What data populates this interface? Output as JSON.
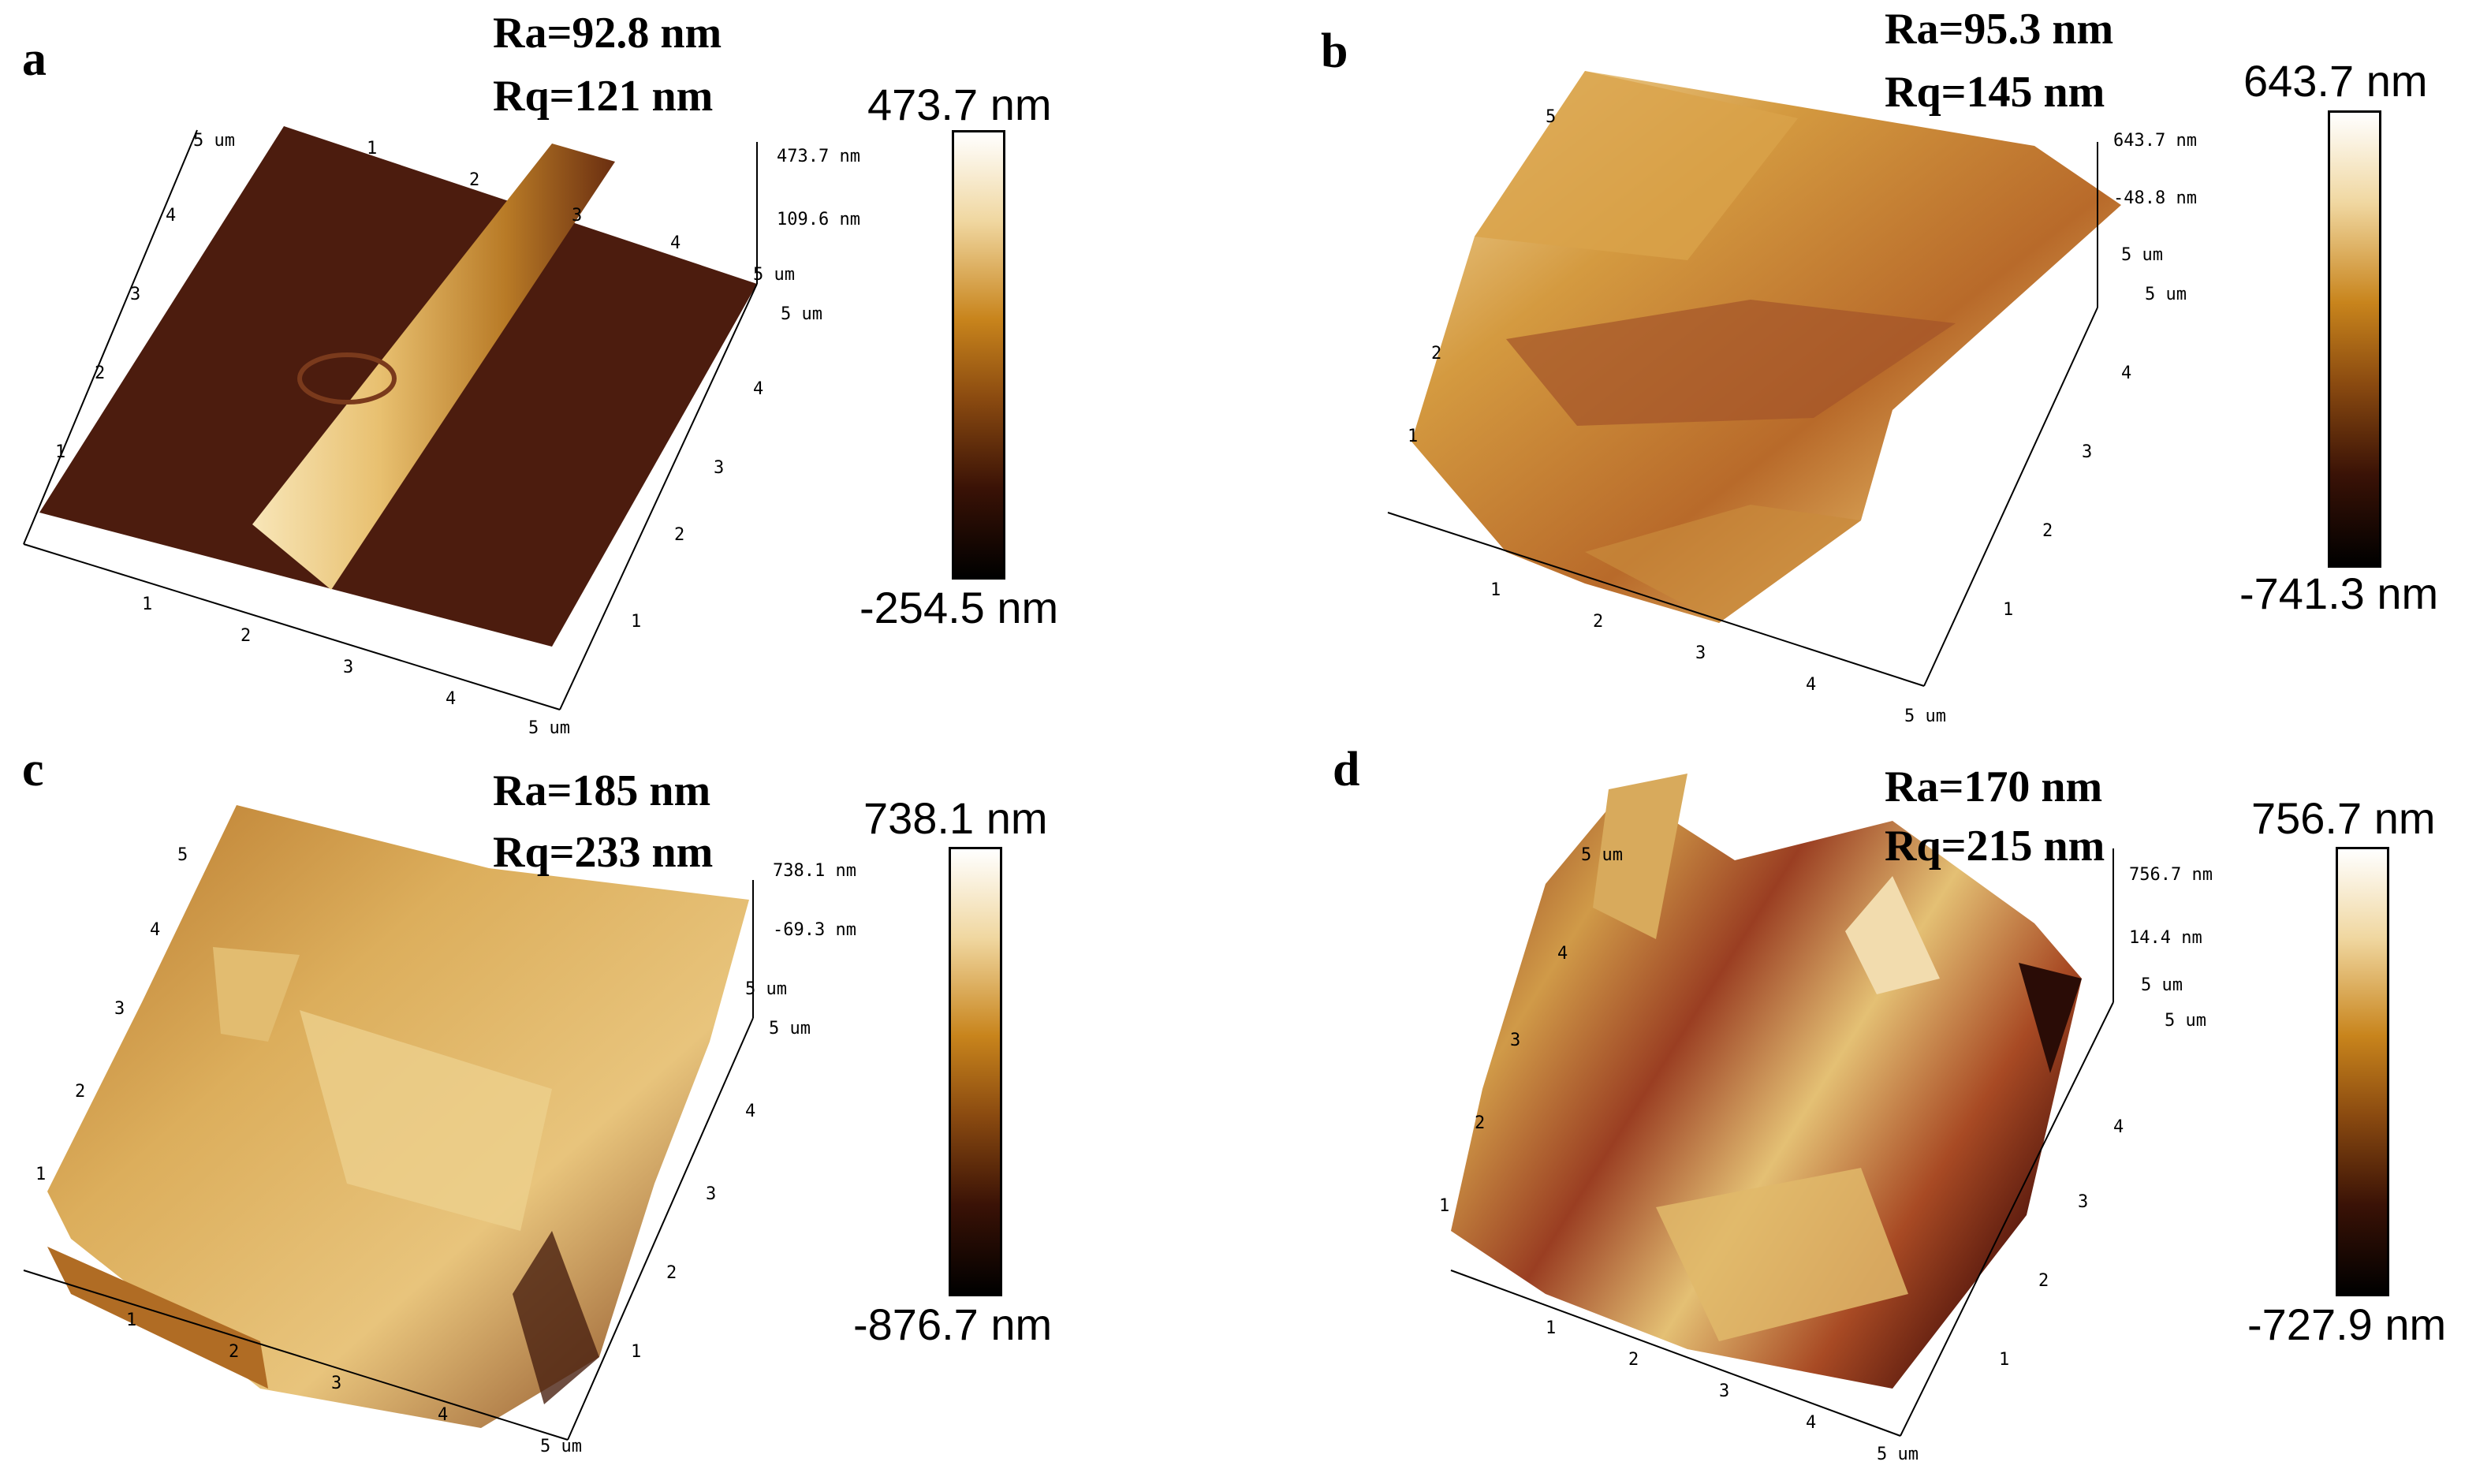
{
  "colors": {
    "colorbar_stops": [
      "#ffffff",
      "#f0d7a0",
      "#c8841c",
      "#8a4a10",
      "#3a1206",
      "#000000"
    ],
    "flat_surface": "#4a1a0c",
    "ridge_highlight": "#f4dca0",
    "ridge_mid": "#c68a2c",
    "surface_tan": "#c9923a",
    "surface_rust": "#9a4420"
  },
  "panels": [
    {
      "letter": "a",
      "ra": "Ra=92.8 nm",
      "rq": "Rq=121 nm",
      "colorbar_max": "473.7 nm",
      "colorbar_min": "-254.5 nm",
      "z_tick_top": "473.7 nm",
      "z_tick_mid": "109.6 nm",
      "x_ticks": [
        "1",
        "2",
        "3",
        "4",
        "5 um"
      ],
      "y_ticks": [
        "1",
        "2",
        "3",
        "4",
        "5 um"
      ],
      "left_ticks": [
        "1",
        "2",
        "3",
        "4",
        "5 um"
      ],
      "back_ticks": [
        "1",
        "2",
        "3",
        "4"
      ],
      "corner_ticks": [
        "5 um",
        "5 um"
      ]
    },
    {
      "letter": "b",
      "ra": "Ra=95.3 nm",
      "rq": "Rq=145 nm",
      "colorbar_max": "643.7 nm",
      "colorbar_min": "-741.3 nm",
      "z_tick_top": "643.7 nm",
      "z_tick_mid": "-48.8 nm",
      "x_ticks": [
        "1",
        "2",
        "3",
        "4",
        "5 um"
      ],
      "y_ticks": [
        "1",
        "2",
        "3",
        "4"
      ],
      "left_ticks": [
        "1",
        "2",
        "5"
      ],
      "corner_ticks": [
        "5 um",
        "5 um"
      ]
    },
    {
      "letter": "c",
      "ra": "Ra=185 nm",
      "rq": "Rq=233 nm",
      "colorbar_max": "738.1 nm",
      "colorbar_min": "-876.7 nm",
      "z_tick_top": "738.1 nm",
      "z_tick_mid": "-69.3 nm",
      "x_ticks": [
        "1",
        "2",
        "3",
        "4",
        "5 um"
      ],
      "y_ticks": [
        "1",
        "2",
        "3",
        "4"
      ],
      "left_ticks": [
        "1",
        "2",
        "3",
        "4",
        "5"
      ],
      "corner_ticks": [
        "5 um",
        "5 um"
      ]
    },
    {
      "letter": "d",
      "ra": "Ra=170 nm",
      "rq": "Rq=215 nm",
      "colorbar_max": "756.7 nm",
      "colorbar_min": "-727.9 nm",
      "z_tick_top": "756.7 nm",
      "z_tick_mid": "14.4 nm",
      "x_ticks": [
        "1",
        "2",
        "3",
        "4",
        "5 um"
      ],
      "y_ticks": [
        "1",
        "2",
        "3",
        "4"
      ],
      "left_ticks": [
        "1",
        "2",
        "3",
        "4",
        "5 um"
      ],
      "corner_ticks": [
        "5 um",
        "5 um"
      ]
    }
  ]
}
